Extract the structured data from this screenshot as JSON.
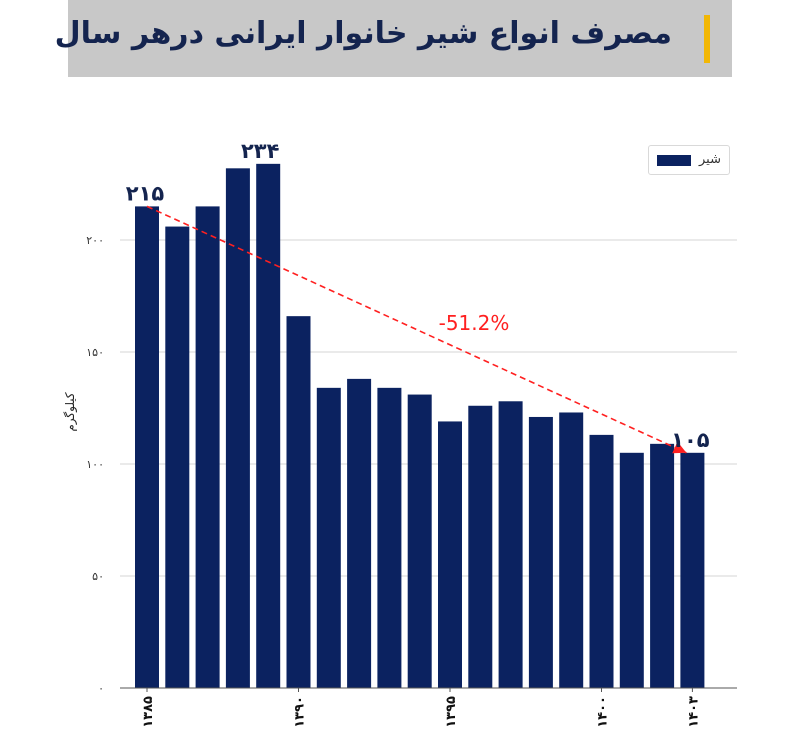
{
  "title": "مصرف انواع شیر خانوار ایرانی درهر سال",
  "colors": {
    "bar": "#0b2260",
    "accent": "#f2b705",
    "banner": "#c8c8c8",
    "trend": "#ff2020"
  },
  "chart_data": {
    "type": "bar",
    "ylabel": "کیلوگرم",
    "xlabel": "",
    "ylim": [
      0,
      250
    ],
    "yticks": [
      0,
      50,
      100,
      150,
      200
    ],
    "ytick_labels": [
      "۰",
      "۵۰",
      "۱۰۰",
      "۱۵۰",
      "۲۰۰"
    ],
    "grid": true,
    "legend_position": "top-right",
    "categories": [
      1385,
      1386,
      1387,
      1388,
      1389,
      1390,
      1391,
      1392,
      1393,
      1394,
      1395,
      1396,
      1397,
      1398,
      1399,
      1400,
      1401,
      1402,
      1403
    ],
    "xtick_values": [
      1385,
      1390,
      1395,
      1400,
      1403
    ],
    "xtick_labels": [
      "۱۳۸۵",
      "۱۳۹۰",
      "۱۳۹۵",
      "۱۴۰۰",
      "۱۴۰۳"
    ],
    "series": [
      {
        "name": "شیر",
        "values": [
          215,
          206,
          215,
          232,
          234,
          166,
          134,
          138,
          134,
          131,
          119,
          126,
          128,
          121,
          123,
          113,
          105,
          109,
          105
        ]
      }
    ],
    "annotations": {
      "first_value": "۲۱۵",
      "max_value": "۲۳۴",
      "last_value": "۱۰۵",
      "change": "-51.2%"
    }
  }
}
